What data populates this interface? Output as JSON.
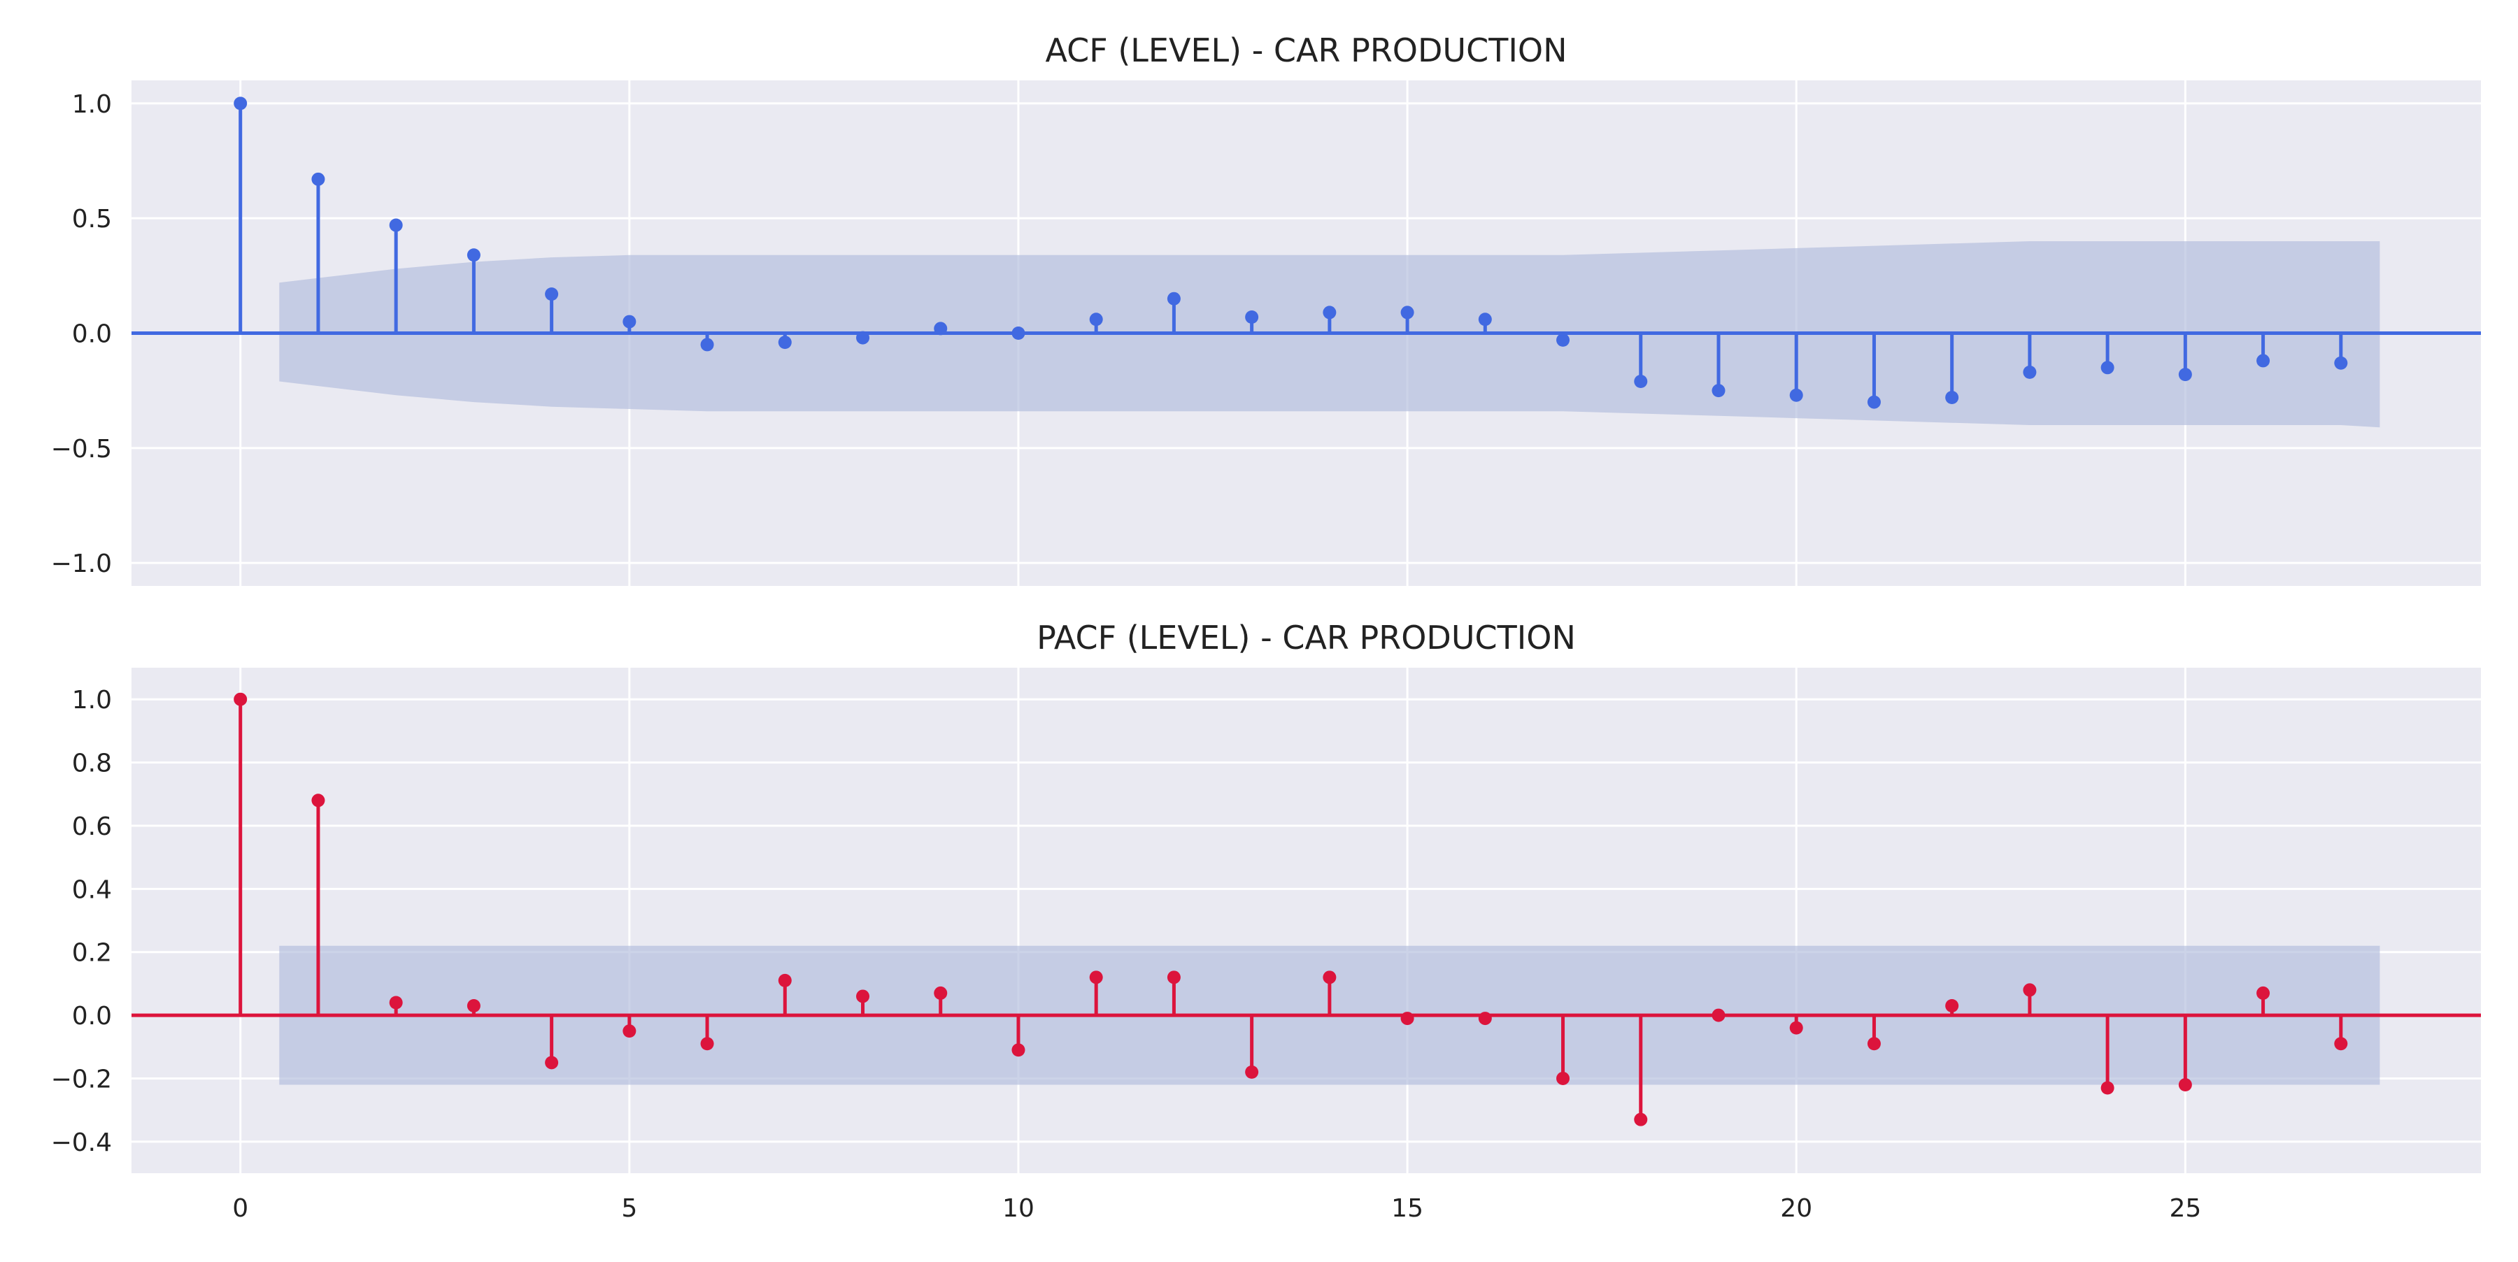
{
  "colors": {
    "background": "#eaeaf2",
    "grid": "#ffffff",
    "confidence_band": "#b0bcdb",
    "acf": "#4169e1",
    "pacf": "#dc143c",
    "text": "#222222"
  },
  "chart_data": [
    {
      "type": "stem",
      "name": "acf",
      "title": "ACF (LEVEL) - CAR PRODUCTION",
      "xlabel": "",
      "ylabel": "",
      "xlim": [
        -1.4,
        28.8
      ],
      "ylim": [
        -1.1,
        1.1
      ],
      "yticks": [
        1.0,
        0.5,
        0.0,
        -0.5,
        -1.0
      ],
      "ytick_labels": [
        "1.0",
        "0.5",
        "0.0",
        "−0.5",
        "−1.0"
      ],
      "grid": true,
      "show_xtick_labels": false,
      "lags": [
        0,
        1,
        2,
        3,
        4,
        5,
        6,
        7,
        8,
        9,
        10,
        11,
        12,
        13,
        14,
        15,
        16,
        17,
        18,
        19,
        20,
        21,
        22,
        23,
        24,
        25,
        26,
        27
      ],
      "values": [
        1.0,
        0.67,
        0.47,
        0.34,
        0.17,
        0.05,
        -0.05,
        -0.04,
        -0.02,
        0.02,
        0.0,
        0.06,
        0.15,
        0.07,
        0.09,
        0.09,
        0.06,
        -0.03,
        -0.21,
        -0.25,
        -0.27,
        -0.3,
        -0.28,
        -0.17,
        -0.15,
        -0.18,
        -0.12,
        -0.13
      ],
      "confidence_band": {
        "lags": [
          0.5,
          1,
          2,
          3,
          4,
          5,
          6,
          7,
          8,
          9,
          10,
          11,
          12,
          13,
          14,
          15,
          16,
          17,
          18,
          19,
          20,
          21,
          22,
          23,
          24,
          25,
          26,
          27,
          27.5
        ],
        "upper": [
          0.22,
          0.24,
          0.28,
          0.31,
          0.33,
          0.34,
          0.34,
          0.34,
          0.34,
          0.34,
          0.34,
          0.34,
          0.34,
          0.34,
          0.34,
          0.34,
          0.34,
          0.34,
          0.35,
          0.36,
          0.37,
          0.38,
          0.39,
          0.4,
          0.4,
          0.4,
          0.4,
          0.4,
          0.4
        ],
        "lower": [
          -0.21,
          -0.23,
          -0.27,
          -0.3,
          -0.32,
          -0.33,
          -0.34,
          -0.34,
          -0.34,
          -0.34,
          -0.34,
          -0.34,
          -0.34,
          -0.34,
          -0.34,
          -0.34,
          -0.34,
          -0.34,
          -0.35,
          -0.36,
          -0.37,
          -0.38,
          -0.39,
          -0.4,
          -0.4,
          -0.4,
          -0.4,
          -0.4,
          -0.41
        ]
      }
    },
    {
      "type": "stem",
      "name": "pacf",
      "title": "PACF (LEVEL) - CAR PRODUCTION",
      "xlabel": "",
      "ylabel": "",
      "xlim": [
        -1.4,
        28.8
      ],
      "ylim": [
        -0.5,
        1.1
      ],
      "yticks": [
        1.0,
        0.8,
        0.6,
        0.4,
        0.2,
        0.0,
        -0.2,
        -0.4
      ],
      "ytick_labels": [
        "1.0",
        "0.8",
        "0.6",
        "0.4",
        "0.2",
        "0.0",
        "−0.2",
        "−0.4"
      ],
      "xticks": [
        0,
        5,
        10,
        15,
        20,
        25
      ],
      "xtick_labels": [
        "0",
        "5",
        "10",
        "15",
        "20",
        "25"
      ],
      "grid": true,
      "show_xtick_labels": true,
      "lags": [
        0,
        1,
        2,
        3,
        4,
        5,
        6,
        7,
        8,
        9,
        10,
        11,
        12,
        13,
        14,
        15,
        16,
        17,
        18,
        19,
        20,
        21,
        22,
        23,
        24,
        25,
        26,
        27
      ],
      "values": [
        1.0,
        0.68,
        0.04,
        0.03,
        -0.15,
        -0.05,
        -0.09,
        0.11,
        0.06,
        0.07,
        -0.11,
        0.12,
        0.12,
        -0.18,
        0.12,
        -0.01,
        -0.01,
        -0.2,
        -0.33,
        0.0,
        -0.04,
        -0.09,
        0.03,
        0.08,
        -0.23,
        -0.22,
        0.07,
        -0.09
      ],
      "confidence_band": {
        "lags": [
          0.5,
          27.5
        ],
        "upper": [
          0.22,
          0.22
        ],
        "lower": [
          -0.22,
          -0.22
        ]
      }
    }
  ]
}
